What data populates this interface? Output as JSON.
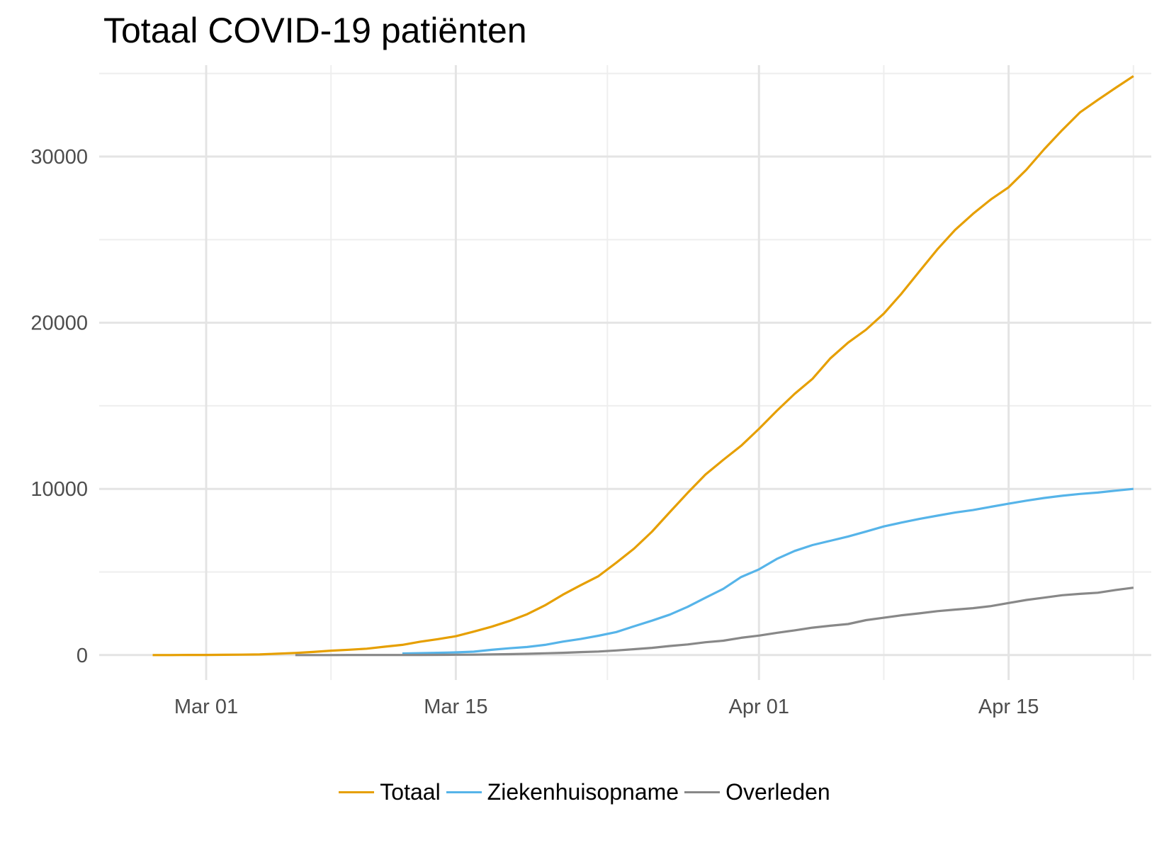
{
  "chart_data": {
    "type": "line",
    "title": "Totaal COVID-19 patiënten",
    "xlabel": "",
    "ylabel": "",
    "grid": true,
    "legend_position": "bottom",
    "x_range": [
      "2020-02-24",
      "2020-04-23"
    ],
    "ylim": [
      -1500,
      35500
    ],
    "y_ticks": [
      0,
      10000,
      20000,
      30000
    ],
    "y_tick_labels": [
      "0",
      "10000",
      "20000",
      "30000"
    ],
    "x_ticks": [
      "2020-03-01",
      "2020-03-15",
      "2020-04-01",
      "2020-04-15"
    ],
    "x_tick_labels": [
      "Mar 01",
      "Mar 15",
      "Apr 01",
      "Apr 15"
    ],
    "series": [
      {
        "name": "Totaal",
        "color": "#E69F00",
        "points": [
          [
            "2020-02-27",
            1
          ],
          [
            "2020-02-28",
            2
          ],
          [
            "2020-02-29",
            7
          ],
          [
            "2020-03-01",
            10
          ],
          [
            "2020-03-02",
            18
          ],
          [
            "2020-03-03",
            24
          ],
          [
            "2020-03-04",
            38
          ],
          [
            "2020-03-05",
            82
          ],
          [
            "2020-03-06",
            128
          ],
          [
            "2020-03-07",
            188
          ],
          [
            "2020-03-08",
            265
          ],
          [
            "2020-03-09",
            321
          ],
          [
            "2020-03-10",
            382
          ],
          [
            "2020-03-11",
            503
          ],
          [
            "2020-03-12",
            614
          ],
          [
            "2020-03-13",
            804
          ],
          [
            "2020-03-14",
            959
          ],
          [
            "2020-03-15",
            1135
          ],
          [
            "2020-03-16",
            1413
          ],
          [
            "2020-03-17",
            1705
          ],
          [
            "2020-03-18",
            2051
          ],
          [
            "2020-03-19",
            2460
          ],
          [
            "2020-03-20",
            2994
          ],
          [
            "2020-03-21",
            3631
          ],
          [
            "2020-03-22",
            4204
          ],
          [
            "2020-03-23",
            4749
          ],
          [
            "2020-03-24",
            5560
          ],
          [
            "2020-03-25",
            6412
          ],
          [
            "2020-03-26",
            7431
          ],
          [
            "2020-03-27",
            8603
          ],
          [
            "2020-03-28",
            9762
          ],
          [
            "2020-03-29",
            10866
          ],
          [
            "2020-03-30",
            11750
          ],
          [
            "2020-03-31",
            12595
          ],
          [
            "2020-04-01",
            13614
          ],
          [
            "2020-04-02",
            14697
          ],
          [
            "2020-04-03",
            15723
          ],
          [
            "2020-04-04",
            16627
          ],
          [
            "2020-04-05",
            17851
          ],
          [
            "2020-04-06",
            18803
          ],
          [
            "2020-04-07",
            19580
          ],
          [
            "2020-04-08",
            20549
          ],
          [
            "2020-04-09",
            21762
          ],
          [
            "2020-04-10",
            23097
          ],
          [
            "2020-04-11",
            24413
          ],
          [
            "2020-04-12",
            25587
          ],
          [
            "2020-04-13",
            26551
          ],
          [
            "2020-04-14",
            27419
          ],
          [
            "2020-04-15",
            28153
          ],
          [
            "2020-04-16",
            29214
          ],
          [
            "2020-04-17",
            30449
          ],
          [
            "2020-04-18",
            31589
          ],
          [
            "2020-04-19",
            32655
          ],
          [
            "2020-04-20",
            33405
          ],
          [
            "2020-04-21",
            34134
          ],
          [
            "2020-04-22",
            34842
          ]
        ]
      },
      {
        "name": "Ziekenhuisopname",
        "color": "#56B4E9",
        "points": [
          [
            "2020-03-12",
            95
          ],
          [
            "2020-03-13",
            115
          ],
          [
            "2020-03-14",
            136
          ],
          [
            "2020-03-15",
            162
          ],
          [
            "2020-03-16",
            205
          ],
          [
            "2020-03-17",
            314
          ],
          [
            "2020-03-18",
            408
          ],
          [
            "2020-03-19",
            487
          ],
          [
            "2020-03-20",
            614
          ],
          [
            "2020-03-21",
            811
          ],
          [
            "2020-03-22",
            966
          ],
          [
            "2020-03-23",
            1163
          ],
          [
            "2020-03-24",
            1385
          ],
          [
            "2020-03-25",
            1735
          ],
          [
            "2020-03-26",
            2072
          ],
          [
            "2020-03-27",
            2435
          ],
          [
            "2020-03-28",
            2903
          ],
          [
            "2020-03-29",
            3453
          ],
          [
            "2020-03-30",
            3987
          ],
          [
            "2020-03-31",
            4700
          ],
          [
            "2020-04-01",
            5160
          ],
          [
            "2020-04-02",
            5787
          ],
          [
            "2020-04-03",
            6268
          ],
          [
            "2020-04-04",
            6622
          ],
          [
            "2020-04-05",
            6875
          ],
          [
            "2020-04-06",
            7136
          ],
          [
            "2020-04-07",
            7435
          ],
          [
            "2020-04-08",
            7741
          ],
          [
            "2020-04-09",
            7974
          ],
          [
            "2020-04-10",
            8194
          ],
          [
            "2020-04-11",
            8391
          ],
          [
            "2020-04-12",
            8575
          ],
          [
            "2020-04-13",
            8725
          ],
          [
            "2020-04-14",
            8921
          ],
          [
            "2020-04-15",
            9108
          ],
          [
            "2020-04-16",
            9294
          ],
          [
            "2020-04-17",
            9454
          ],
          [
            "2020-04-18",
            9587
          ],
          [
            "2020-04-19",
            9698
          ],
          [
            "2020-04-20",
            9781
          ],
          [
            "2020-04-21",
            9894
          ],
          [
            "2020-04-22",
            10002
          ]
        ]
      },
      {
        "name": "Overleden",
        "color": "#888888",
        "points": [
          [
            "2020-03-06",
            1
          ],
          [
            "2020-03-07",
            1
          ],
          [
            "2020-03-08",
            2
          ],
          [
            "2020-03-09",
            3
          ],
          [
            "2020-03-10",
            4
          ],
          [
            "2020-03-11",
            5
          ],
          [
            "2020-03-12",
            5
          ],
          [
            "2020-03-13",
            10
          ],
          [
            "2020-03-14",
            12
          ],
          [
            "2020-03-15",
            20
          ],
          [
            "2020-03-16",
            24
          ],
          [
            "2020-03-17",
            43
          ],
          [
            "2020-03-18",
            58
          ],
          [
            "2020-03-19",
            76
          ],
          [
            "2020-03-20",
            106
          ],
          [
            "2020-03-21",
            136
          ],
          [
            "2020-03-22",
            179
          ],
          [
            "2020-03-23",
            213
          ],
          [
            "2020-03-24",
            276
          ],
          [
            "2020-03-25",
            356
          ],
          [
            "2020-03-26",
            434
          ],
          [
            "2020-03-27",
            546
          ],
          [
            "2020-03-28",
            639
          ],
          [
            "2020-03-29",
            771
          ],
          [
            "2020-03-30",
            864
          ],
          [
            "2020-03-31",
            1039
          ],
          [
            "2020-04-01",
            1173
          ],
          [
            "2020-04-02",
            1339
          ],
          [
            "2020-04-03",
            1487
          ],
          [
            "2020-04-04",
            1651
          ],
          [
            "2020-04-05",
            1766
          ],
          [
            "2020-04-06",
            1867
          ],
          [
            "2020-04-07",
            2101
          ],
          [
            "2020-04-08",
            2248
          ],
          [
            "2020-04-09",
            2396
          ],
          [
            "2020-04-10",
            2511
          ],
          [
            "2020-04-11",
            2643
          ],
          [
            "2020-04-12",
            2737
          ],
          [
            "2020-04-13",
            2823
          ],
          [
            "2020-04-14",
            2945
          ],
          [
            "2020-04-15",
            3134
          ],
          [
            "2020-04-16",
            3315
          ],
          [
            "2020-04-17",
            3459
          ],
          [
            "2020-04-18",
            3601
          ],
          [
            "2020-04-19",
            3684
          ],
          [
            "2020-04-20",
            3751
          ],
          [
            "2020-04-21",
            3916
          ],
          [
            "2020-04-22",
            4054
          ]
        ]
      }
    ]
  }
}
